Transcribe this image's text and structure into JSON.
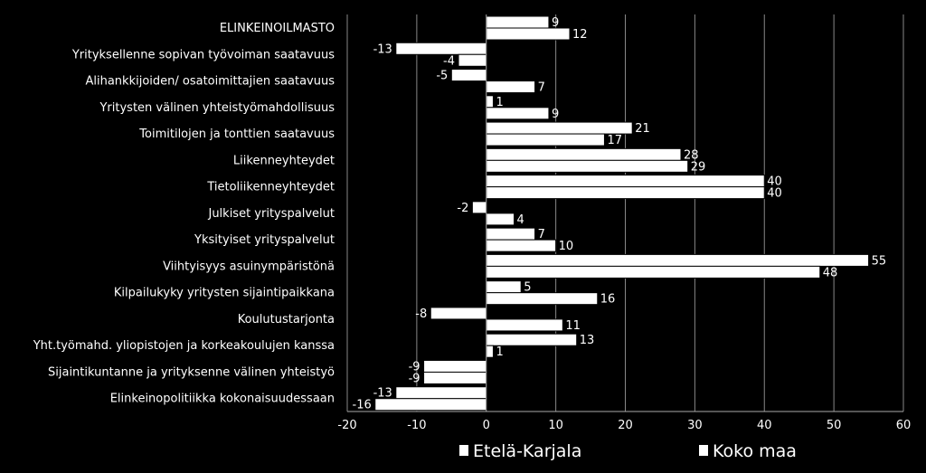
{
  "chart_data": {
    "type": "bar",
    "orientation": "horizontal",
    "categories": [
      "ELINKEINOILMASTO",
      "Yrityksellenne sopivan työvoiman saatavuus",
      "Alihankkijoiden/ osatoimittajien saatavuus",
      "Yritysten välinen yhteistyömahdollisuus",
      "Toimitilojen ja tonttien saatavuus",
      "Liikenneyhteydet",
      "Tietoliikenneyhteydet",
      "Julkiset yrityspalvelut",
      "Yksityiset yrityspalvelut",
      "Viihtyisyys asuinympäristönä",
      "Kilpailukyky yritysten sijaintipaikkana",
      "Koulutustarjonta",
      "Yht.työmahd. yliopistojen ja korkeakoulujen kanssa",
      "Sijaintikuntanne ja yrityksenne välinen yhteistyö",
      "Elinkeinopolitiikka kokonaisuudessaan"
    ],
    "series": [
      {
        "name": "Etelä-Karjala",
        "values": [
          9,
          -13,
          -5,
          1,
          21,
          28,
          40,
          -2,
          7,
          55,
          5,
          -8,
          13,
          -9,
          -13
        ]
      },
      {
        "name": "Koko maa",
        "values": [
          12,
          -4,
          7,
          9,
          17,
          29,
          40,
          4,
          10,
          48,
          16,
          11,
          1,
          -9,
          -16
        ]
      }
    ],
    "xlim": [
      -20,
      60
    ],
    "xticks": [
      -20,
      -10,
      0,
      10,
      20,
      30,
      40,
      50,
      60
    ],
    "grid": true,
    "legend": "bottom",
    "colors": {
      "background": "#000000",
      "bars": "#ffffff",
      "text": "#ffffff",
      "grid": "#888888"
    }
  }
}
